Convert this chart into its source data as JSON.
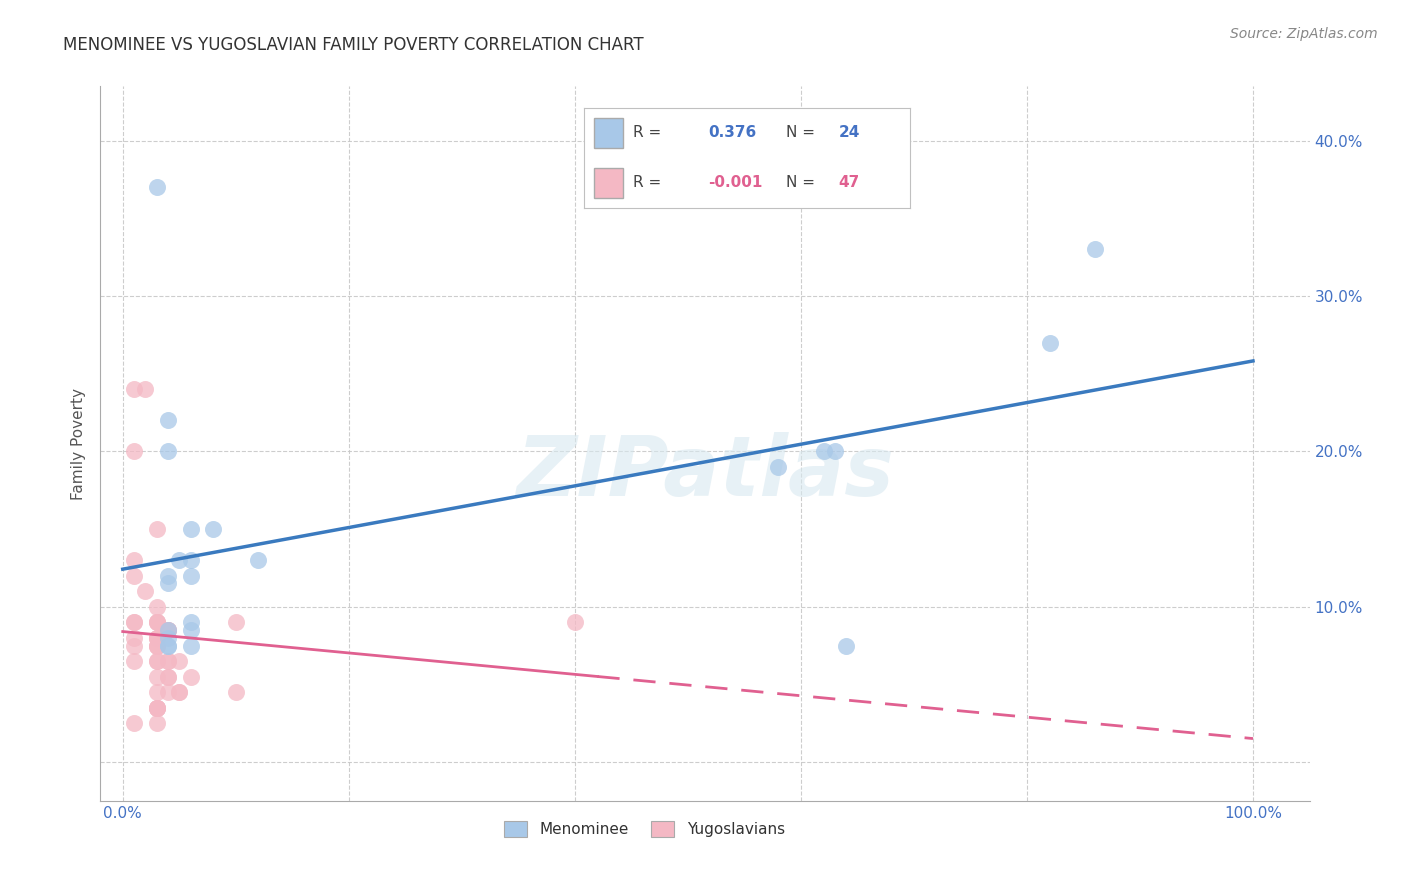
{
  "title": "MENOMINEE VS YUGOSLAVIAN FAMILY POVERTY CORRELATION CHART",
  "source": "Source: ZipAtlas.com",
  "ylabel": "Family Poverty",
  "xlim": [
    -0.02,
    1.05
  ],
  "ylim": [
    -0.025,
    0.435
  ],
  "xticks": [
    0.0,
    0.2,
    0.4,
    0.6,
    0.8,
    1.0
  ],
  "xticklabels": [
    "0.0%",
    "",
    "",
    "",
    "",
    "100.0%"
  ],
  "yticks": [
    0.0,
    0.1,
    0.2,
    0.3,
    0.4
  ],
  "yticklabels": [
    "",
    "10.0%",
    "20.0%",
    "30.0%",
    "40.0%"
  ],
  "menominee_x": [
    0.03,
    0.04,
    0.05,
    0.06,
    0.04,
    0.04,
    0.06,
    0.08,
    0.06,
    0.06,
    0.04,
    0.04,
    0.04,
    0.06,
    0.04,
    0.06,
    0.04,
    0.58,
    0.62,
    0.63,
    0.64,
    0.82,
    0.86,
    0.12
  ],
  "menominee_y": [
    0.37,
    0.22,
    0.13,
    0.13,
    0.12,
    0.115,
    0.12,
    0.15,
    0.09,
    0.085,
    0.085,
    0.08,
    0.075,
    0.075,
    0.075,
    0.15,
    0.2,
    0.19,
    0.2,
    0.2,
    0.075,
    0.27,
    0.33,
    0.13
  ],
  "yugoslavian_x": [
    0.01,
    0.02,
    0.01,
    0.03,
    0.01,
    0.01,
    0.02,
    0.03,
    0.01,
    0.03,
    0.03,
    0.01,
    0.03,
    0.04,
    0.04,
    0.04,
    0.03,
    0.03,
    0.01,
    0.03,
    0.03,
    0.03,
    0.01,
    0.03,
    0.04,
    0.01,
    0.03,
    0.03,
    0.04,
    0.05,
    0.04,
    0.06,
    0.03,
    0.04,
    0.1,
    0.04,
    0.05,
    0.1,
    0.05,
    0.03,
    0.03,
    0.03,
    0.4,
    0.03,
    0.03,
    0.03,
    0.01
  ],
  "yugoslavian_y": [
    0.24,
    0.24,
    0.2,
    0.15,
    0.13,
    0.12,
    0.11,
    0.1,
    0.09,
    0.09,
    0.09,
    0.09,
    0.09,
    0.085,
    0.085,
    0.085,
    0.08,
    0.08,
    0.08,
    0.08,
    0.075,
    0.075,
    0.075,
    0.075,
    0.065,
    0.065,
    0.065,
    0.065,
    0.065,
    0.065,
    0.055,
    0.055,
    0.055,
    0.055,
    0.09,
    0.045,
    0.045,
    0.045,
    0.045,
    0.045,
    0.035,
    0.035,
    0.09,
    0.035,
    0.035,
    0.025,
    0.025
  ],
  "menominee_R": 0.376,
  "menominee_N": 24,
  "yugoslavian_R": -0.001,
  "yugoslavian_N": 47,
  "menominee_color": "#a8c8e8",
  "yugoslavian_color": "#f4b8c4",
  "menominee_line_color": "#3a7abf",
  "yugoslavian_line_color": "#e06090",
  "grid_color": "#c8c8c8",
  "background_color": "#ffffff",
  "watermark_text": "ZIPatlas",
  "title_color": "#333333",
  "tick_label_color": "#4472c4",
  "legend_R_label_color": "#444444",
  "legend_men_value_color": "#4472c4",
  "legend_yugo_value_color": "#e06090"
}
